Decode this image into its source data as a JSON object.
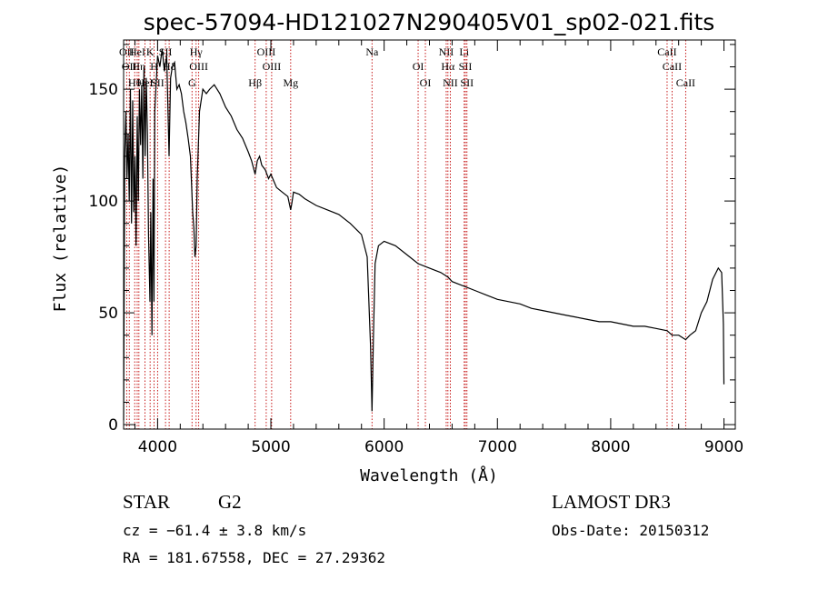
{
  "chart_data": {
    "type": "line",
    "title": "spec-57094-HD121027N290405V01_sp02-021.fits",
    "xlabel": "Wavelength (Å)",
    "ylabel": "Flux (relative)",
    "xlim": [
      3700,
      9100
    ],
    "ylim": [
      -2,
      172
    ],
    "xticks": [
      4000,
      5000,
      6000,
      7000,
      8000,
      9000
    ],
    "yticks": [
      0,
      50,
      100,
      150
    ],
    "grid": false,
    "series": [
      {
        "x": [
          3700,
          3710,
          3720,
          3730,
          3740,
          3750,
          3760,
          3770,
          3780,
          3790,
          3800,
          3810,
          3820,
          3830,
          3840,
          3850,
          3860,
          3870,
          3880,
          3890,
          3900,
          3910,
          3920,
          3933,
          3940,
          3950,
          3960,
          3968,
          3975,
          3985,
          4000,
          4020,
          4040,
          4060,
          4080,
          4101,
          4115,
          4130,
          4150,
          4170,
          4190,
          4210,
          4230,
          4250,
          4270,
          4290,
          4310,
          4320,
          4330,
          4340,
          4350,
          4370,
          4400,
          4430,
          4460,
          4500,
          4550,
          4600,
          4650,
          4700,
          4750,
          4800,
          4830,
          4861,
          4880,
          4900,
          4920,
          4950,
          4980,
          5000,
          5050,
          5100,
          5150,
          5175,
          5185,
          5200,
          5250,
          5300,
          5400,
          5500,
          5600,
          5700,
          5800,
          5850,
          5880,
          5893,
          5905,
          5920,
          5950,
          6000,
          6100,
          6200,
          6300,
          6400,
          6500,
          6563,
          6600,
          6700,
          6800,
          6900,
          7000,
          7100,
          7200,
          7300,
          7400,
          7500,
          7600,
          7700,
          7800,
          7900,
          8000,
          8100,
          8200,
          8300,
          8400,
          8498,
          8542,
          8600,
          8662,
          8700,
          8750,
          8800,
          8850,
          8900,
          8950,
          8980,
          8995,
          9000
        ],
        "y": [
          2,
          120,
          140,
          110,
          130,
          100,
          150,
          90,
          145,
          95,
          120,
          80,
          138,
          100,
          150,
          125,
          152,
          110,
          160,
          120,
          155,
          130,
          85,
          55,
          95,
          40,
          110,
          55,
          140,
          150,
          165,
          160,
          168,
          158,
          165,
          120,
          155,
          160,
          162,
          150,
          152,
          148,
          140,
          135,
          128,
          120,
          95,
          88,
          75,
          80,
          110,
          140,
          150,
          148,
          150,
          152,
          148,
          142,
          138,
          132,
          128,
          122,
          118,
          112,
          118,
          120,
          116,
          114,
          110,
          112,
          106,
          104,
          102,
          96,
          99,
          104,
          103,
          101,
          98,
          96,
          94,
          90,
          85,
          75,
          35,
          6,
          38,
          72,
          80,
          82,
          80,
          76,
          72,
          70,
          68,
          66,
          64,
          62,
          60,
          58,
          56,
          55,
          54,
          52,
          51,
          50,
          49,
          48,
          47,
          46,
          46,
          45,
          44,
          44,
          43,
          42,
          40,
          40,
          38,
          40,
          42,
          50,
          55,
          65,
          70,
          68,
          45,
          18
        ]
      }
    ],
    "lines": [
      {
        "wl": 3727,
        "labels": [
          "OII"
        ]
      },
      {
        "wl": 3750,
        "labels": [
          "OII"
        ]
      },
      {
        "wl": 3798,
        "labels": [
          "Hθ"
        ]
      },
      {
        "wl": 3820,
        "labels": [
          "HeI"
        ]
      },
      {
        "wl": 3835,
        "labels": [
          "Hη"
        ]
      },
      {
        "wl": 3889,
        "labels": [
          "HeI"
        ]
      },
      {
        "wl": 3934,
        "labels": [
          "K"
        ]
      },
      {
        "wl": 3969,
        "labels": [
          "H"
        ]
      },
      {
        "wl": 4000,
        "labels": [
          "SII"
        ]
      },
      {
        "wl": 4070,
        "labels": [
          "SII"
        ]
      },
      {
        "wl": 4102,
        "labels": [
          "Hδ"
        ]
      },
      {
        "wl": 4304,
        "labels": [
          "G"
        ]
      },
      {
        "wl": 4340,
        "labels": [
          "Hγ"
        ]
      },
      {
        "wl": 4363,
        "labels": [
          "OIII"
        ]
      },
      {
        "wl": 4861,
        "labels": [
          "Hβ"
        ]
      },
      {
        "wl": 4959,
        "labels": [
          "OIII"
        ]
      },
      {
        "wl": 5007,
        "labels": [
          "OIII"
        ]
      },
      {
        "wl": 5175,
        "labels": [
          "Mg"
        ]
      },
      {
        "wl": 5893,
        "labels": [
          "Na"
        ]
      },
      {
        "wl": 6300,
        "labels": [
          "OI"
        ]
      },
      {
        "wl": 6364,
        "labels": [
          "OI"
        ]
      },
      {
        "wl": 6548,
        "labels": [
          "NII"
        ]
      },
      {
        "wl": 6563,
        "labels": [
          "Hα"
        ]
      },
      {
        "wl": 6584,
        "labels": [
          "NII"
        ]
      },
      {
        "wl": 6707,
        "labels": [
          "Li"
        ]
      },
      {
        "wl": 6717,
        "labels": [
          "SII"
        ]
      },
      {
        "wl": 6731,
        "labels": [
          "SII"
        ]
      },
      {
        "wl": 8498,
        "labels": [
          "CaII"
        ]
      },
      {
        "wl": 8542,
        "labels": [
          "CaII"
        ]
      },
      {
        "wl": 8662,
        "labels": [
          "CaII"
        ]
      }
    ]
  },
  "info": {
    "object_class": "STAR",
    "subclass": "G2",
    "survey": "LAMOST DR3",
    "cz": "cz = −61.4 ± 3.8 km/s",
    "obs_date": "Obs-Date: 20150312",
    "coords": "RA = 181.67558, DEC =  27.29362"
  }
}
